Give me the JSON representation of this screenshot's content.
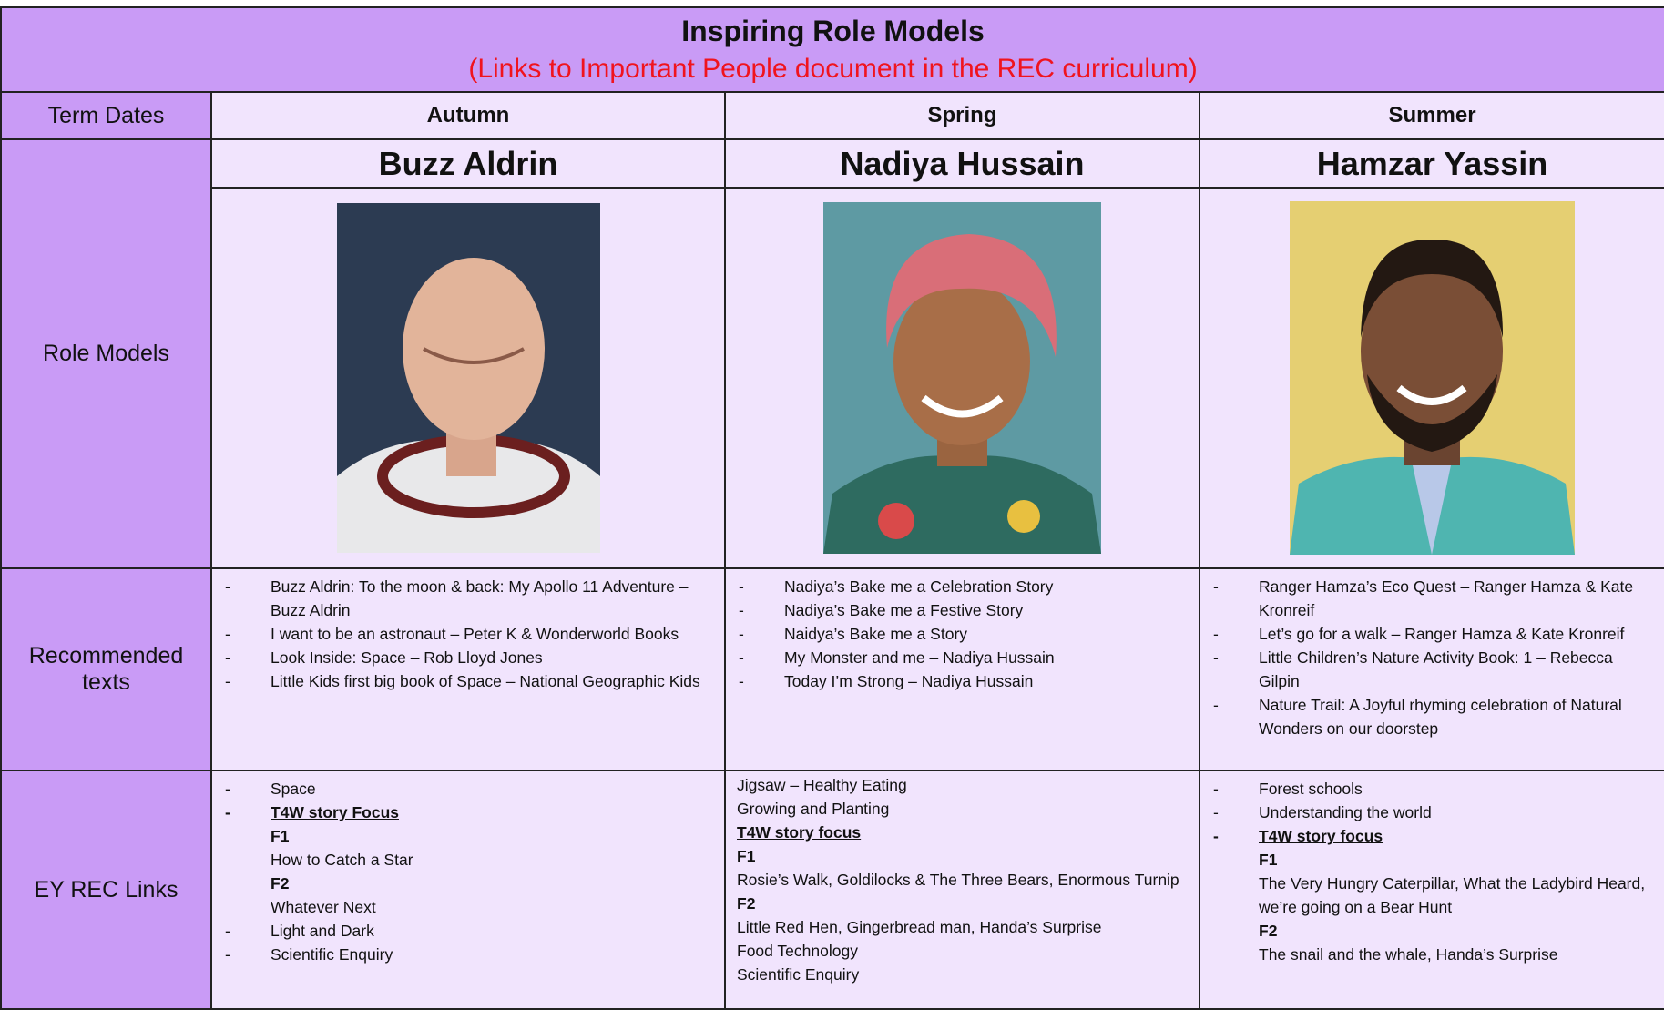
{
  "header": {
    "title": "Inspiring Role Models",
    "subtitle": "(Links to Important People document in the REC curriculum)"
  },
  "columns": [
    "Term Dates",
    "Autumn",
    "Spring",
    "Summer"
  ],
  "role_models": {
    "label": "Role Models",
    "names": [
      "Buzz Aldrin",
      "Nadiya Hussain",
      "Hamzar Yassin"
    ]
  },
  "recommended_texts": {
    "label": "Recommended texts",
    "cells": [
      [
        "Buzz Aldrin: To the moon & back: My Apollo 11 Adventure – Buzz Aldrin",
        "I want to be an astronaut – Peter K & Wonderworld Books",
        "Look Inside: Space – Rob Lloyd Jones",
        "Little Kids first big book of Space – National Geographic Kids"
      ],
      [
        "Nadiya’s Bake me a Celebration Story",
        "Nadiya’s Bake me a Festive Story",
        "Naidya’s Bake me a Story",
        "My Monster and me – Nadiya Hussain",
        "Today I’m Strong – Nadiya Hussain"
      ],
      [
        "Ranger Hamza’s Eco Quest – Ranger Hamza & Kate Kronreif",
        "Let’s go for a walk – Ranger Hamza & Kate Kronreif",
        "Little Children’s Nature Activity Book: 1 – Rebecca Gilpin",
        "Nature Trail: A Joyful rhyming celebration of Natural Wonders on our doorstep"
      ]
    ]
  },
  "ey_links": {
    "label": "EY REC Links",
    "cells": [
      [
        {
          "text": "Space",
          "kind": "bullet"
        },
        {
          "text": "T4W story Focus",
          "kind": "bullet-heading"
        },
        {
          "text": "F1",
          "kind": "sub-heading"
        },
        {
          "text": "How to Catch a Star",
          "kind": "sub"
        },
        {
          "text": "F2",
          "kind": "sub-heading"
        },
        {
          "text": "Whatever Next",
          "kind": "sub"
        },
        {
          "text": "Light and Dark",
          "kind": "bullet"
        },
        {
          "text": "Scientific Enquiry",
          "kind": "bullet"
        }
      ],
      [
        {
          "text": "Jigsaw – Healthy Eating",
          "kind": "plain"
        },
        {
          "text": "Growing and Planting",
          "kind": "plain"
        },
        {
          "text": "T4W story focus",
          "kind": "heading"
        },
        {
          "text": "F1",
          "kind": "plain-bold"
        },
        {
          "text": "Rosie’s Walk, Goldilocks & The Three Bears, Enormous Turnip",
          "kind": "plain"
        },
        {
          "text": "F2",
          "kind": "plain-bold"
        },
        {
          "text": "Little Red Hen, Gingerbread man, Handa’s Surprise",
          "kind": "plain"
        },
        {
          "text": "Food Technology",
          "kind": "plain"
        },
        {
          "text": "Scientific Enquiry",
          "kind": "plain"
        }
      ],
      [
        {
          "text": "Forest schools",
          "kind": "bullet"
        },
        {
          "text": "Understanding the world",
          "kind": "bullet"
        },
        {
          "text": "T4W story focus",
          "kind": "bullet-heading"
        },
        {
          "text": "F1",
          "kind": "sub-heading"
        },
        {
          "text": "The Very Hungry Caterpillar, What the Ladybird Heard, we’re going on a Bear Hunt",
          "kind": "sub"
        },
        {
          "text": "F2",
          "kind": "sub-heading"
        },
        {
          "text": "The snail and the whale, Handa’s Surprise",
          "kind": "sub"
        }
      ]
    ]
  }
}
